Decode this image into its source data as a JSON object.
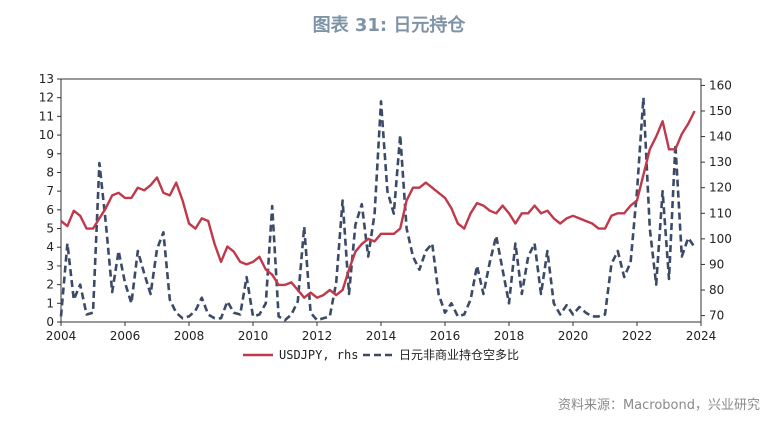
{
  "chart_data": {
    "type": "line",
    "title": "图表 31: 日元持仓",
    "source": "资料来源：Macrobond，兴业研究",
    "x_ticks": [
      "2004",
      "2006",
      "2008",
      "2010",
      "2012",
      "2014",
      "2016",
      "2018",
      "2020",
      "2022",
      "2024"
    ],
    "xlim": [
      2004,
      2024
    ],
    "y_left": {
      "ylim": [
        0,
        13
      ],
      "ticks": [
        "0",
        "1",
        "2",
        "3",
        "4",
        "5",
        "6",
        "7",
        "8",
        "9",
        "10",
        "11",
        "12",
        "13"
      ]
    },
    "y_right": {
      "ylim": [
        67.5,
        162.5
      ],
      "ticks": [
        "70",
        "80",
        "90",
        "100",
        "110",
        "120",
        "130",
        "140",
        "150",
        "160"
      ]
    },
    "legend_position": "bottom",
    "series": [
      {
        "name": "USDJPY, rhs",
        "axis": "right",
        "color": "#c0394b",
        "style": "solid",
        "x": [
          2004.0,
          2004.2,
          2004.4,
          2004.6,
          2004.8,
          2005.0,
          2005.2,
          2005.4,
          2005.6,
          2005.8,
          2006.0,
          2006.2,
          2006.4,
          2006.6,
          2006.8,
          2007.0,
          2007.2,
          2007.4,
          2007.6,
          2007.8,
          2008.0,
          2008.2,
          2008.4,
          2008.6,
          2008.8,
          2009.0,
          2009.2,
          2009.4,
          2009.6,
          2009.8,
          2010.0,
          2010.2,
          2010.4,
          2010.6,
          2010.8,
          2011.0,
          2011.2,
          2011.4,
          2011.6,
          2011.8,
          2012.0,
          2012.2,
          2012.4,
          2012.6,
          2012.8,
          2013.0,
          2013.2,
          2013.4,
          2013.6,
          2013.8,
          2014.0,
          2014.2,
          2014.4,
          2014.6,
          2014.8,
          2015.0,
          2015.2,
          2015.4,
          2015.6,
          2015.8,
          2016.0,
          2016.2,
          2016.4,
          2016.6,
          2016.8,
          2017.0,
          2017.2,
          2017.4,
          2017.6,
          2017.8,
          2018.0,
          2018.2,
          2018.4,
          2018.6,
          2018.8,
          2019.0,
          2019.2,
          2019.4,
          2019.6,
          2019.8,
          2020.0,
          2020.2,
          2020.4,
          2020.6,
          2020.8,
          2021.0,
          2021.2,
          2021.4,
          2021.6,
          2021.8,
          2022.0,
          2022.2,
          2022.4,
          2022.6,
          2022.8,
          2023.0,
          2023.2,
          2023.4,
          2023.6,
          2023.8
        ],
        "values": [
          107,
          105,
          111,
          109,
          104,
          104,
          108,
          112,
          117,
          118,
          116,
          116,
          120,
          119,
          121,
          124,
          118,
          117,
          122,
          115,
          106,
          104,
          108,
          107,
          98,
          91,
          97,
          95,
          91,
          90,
          91,
          93,
          88,
          86,
          82,
          82,
          83,
          80,
          77,
          79,
          77,
          78,
          80,
          78,
          80,
          88,
          95,
          98,
          100,
          99,
          102,
          102,
          102,
          104,
          115,
          120,
          120,
          122,
          120,
          118,
          116,
          112,
          106,
          104,
          110,
          114,
          113,
          111,
          110,
          113,
          110,
          106,
          110,
          110,
          113,
          110,
          111,
          108,
          106,
          108,
          109,
          108,
          107,
          106,
          104,
          104,
          109,
          110,
          110,
          113,
          115,
          125,
          135,
          140,
          146,
          135,
          135,
          141,
          145,
          150
        ]
      },
      {
        "name": "日元非商业持仓空多比",
        "axis": "left",
        "color": "#3b4a66",
        "style": "dashed",
        "x": [
          2004.0,
          2004.2,
          2004.4,
          2004.6,
          2004.8,
          2005.0,
          2005.2,
          2005.4,
          2005.6,
          2005.8,
          2006.0,
          2006.2,
          2006.4,
          2006.6,
          2006.8,
          2007.0,
          2007.2,
          2007.4,
          2007.6,
          2007.8,
          2008.0,
          2008.2,
          2008.4,
          2008.6,
          2008.8,
          2009.0,
          2009.2,
          2009.4,
          2009.6,
          2009.8,
          2010.0,
          2010.2,
          2010.4,
          2010.6,
          2010.8,
          2011.0,
          2011.2,
          2011.4,
          2011.6,
          2011.8,
          2012.0,
          2012.2,
          2012.4,
          2012.6,
          2012.8,
          2013.0,
          2013.2,
          2013.4,
          2013.6,
          2013.8,
          2014.0,
          2014.2,
          2014.4,
          2014.6,
          2014.8,
          2015.0,
          2015.2,
          2015.4,
          2015.6,
          2015.8,
          2016.0,
          2016.2,
          2016.4,
          2016.6,
          2016.8,
          2017.0,
          2017.2,
          2017.4,
          2017.6,
          2017.8,
          2018.0,
          2018.2,
          2018.4,
          2018.6,
          2018.8,
          2019.0,
          2019.2,
          2019.4,
          2019.6,
          2019.8,
          2020.0,
          2020.2,
          2020.4,
          2020.6,
          2020.8,
          2021.0,
          2021.2,
          2021.4,
          2021.6,
          2021.8,
          2022.0,
          2022.2,
          2022.4,
          2022.6,
          2022.8,
          2023.0,
          2023.2,
          2023.4,
          2023.6,
          2023.8
        ],
        "values": [
          0.3,
          4.2,
          1.2,
          2.0,
          0.4,
          0.5,
          8.5,
          5.3,
          1.6,
          3.8,
          2.1,
          1.0,
          3.8,
          2.6,
          1.5,
          3.9,
          4.8,
          1.2,
          0.5,
          0.2,
          0.3,
          0.6,
          1.3,
          0.4,
          0.2,
          0.2,
          1.1,
          0.5,
          0.4,
          2.4,
          0.3,
          0.4,
          1.0,
          6.2,
          0.3,
          0.1,
          0.4,
          1.1,
          5.1,
          0.5,
          0.1,
          0.2,
          0.3,
          2.1,
          6.5,
          1.5,
          5.2,
          6.3,
          3.5,
          5.8,
          11.8,
          7.0,
          5.8,
          10.0,
          5.0,
          3.5,
          2.8,
          3.8,
          4.2,
          1.5,
          0.5,
          1.0,
          0.3,
          0.4,
          1.2,
          3.0,
          1.5,
          3.2,
          4.6,
          2.8,
          1.0,
          4.2,
          1.5,
          3.5,
          4.2,
          1.5,
          3.8,
          1.0,
          0.4,
          0.9,
          0.4,
          0.8,
          0.5,
          0.3,
          0.3,
          0.4,
          3.1,
          3.8,
          2.4,
          3.2,
          7.0,
          12.0,
          5.0,
          2.0,
          7.0,
          2.3,
          9.5,
          3.5,
          4.5,
          4.0
        ]
      }
    ]
  }
}
